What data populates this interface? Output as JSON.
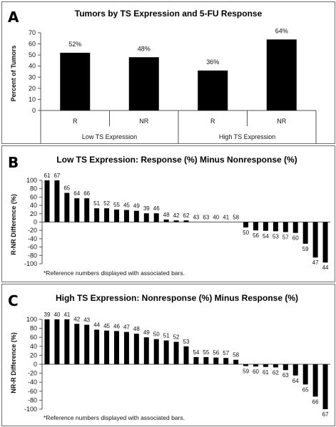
{
  "chart_data": [
    {
      "panel_label": "A",
      "type": "bar",
      "title": "Tumors by TS Expression and 5-FU Response",
      "ylabel": "Percent of Tumors",
      "ylim": [
        0,
        70
      ],
      "y_ticks": [
        "0",
        "10",
        "20",
        "30",
        "40",
        "50",
        "60",
        "70"
      ],
      "categories": [
        "R",
        "NR",
        "R",
        "NR"
      ],
      "groups": [
        "Low TS Expression",
        "High TS Expression"
      ],
      "values": [
        52,
        48,
        36,
        64
      ],
      "value_labels": [
        "52%",
        "48%",
        "36%",
        "64%"
      ],
      "grid": false
    },
    {
      "panel_label": "B",
      "type": "bar",
      "title": "Low TS Expression: Response (%) Minus Nonresponse (%)",
      "ylabel": "R-NR Difference (%)",
      "ylim": [
        -100,
        100
      ],
      "y_ticks": [
        "100",
        "80",
        "60",
        "40",
        "20",
        "0",
        "-20",
        "-40",
        "-60",
        "-80",
        "-100"
      ],
      "labels": [
        "61",
        "67",
        "65",
        "64",
        "66",
        "51",
        "52",
        "55",
        "45",
        "49",
        "39",
        "46",
        "48",
        "42",
        "62",
        "43",
        "63",
        "40",
        "41",
        "58",
        "50",
        "56",
        "54",
        "53",
        "57",
        "60",
        "59",
        "47",
        "44"
      ],
      "values": [
        100,
        100,
        70,
        57,
        57,
        33,
        33,
        30,
        29,
        27,
        21,
        21,
        6,
        4,
        4,
        0,
        0,
        0,
        0,
        0,
        -13,
        -20,
        -21,
        -22,
        -24,
        -26,
        -52,
        -85,
        -97
      ],
      "note": "*Reference numbers displayed with associated bars.",
      "grid": false
    },
    {
      "panel_label": "C",
      "type": "bar",
      "title": "High TS Expression: Nonresponse (%) Minus Response (%)",
      "ylabel": "NR-R Difference (%)",
      "ylim": [
        -100,
        100
      ],
      "y_ticks": [
        "100",
        "80",
        "60",
        "40",
        "20",
        "0",
        "-20",
        "-40",
        "-60",
        "-80",
        "-100"
      ],
      "labels": [
        "39",
        "40",
        "41",
        "42",
        "43",
        "44",
        "45",
        "46",
        "47",
        "48",
        "49",
        "50",
        "51",
        "52",
        "53",
        "54",
        "55",
        "56",
        "57",
        "58",
        "59",
        "60",
        "61",
        "62",
        "63",
        "64",
        "65",
        "66",
        "67"
      ],
      "values": [
        100,
        100,
        100,
        90,
        88,
        77,
        75,
        74,
        72,
        68,
        60,
        56,
        53,
        50,
        40,
        16,
        16,
        15,
        14,
        10,
        -4,
        -5,
        -6,
        -7,
        -13,
        -25,
        -45,
        -72,
        -100
      ],
      "note": "*Reference numbers displayed with associated bars.",
      "grid": false
    }
  ]
}
